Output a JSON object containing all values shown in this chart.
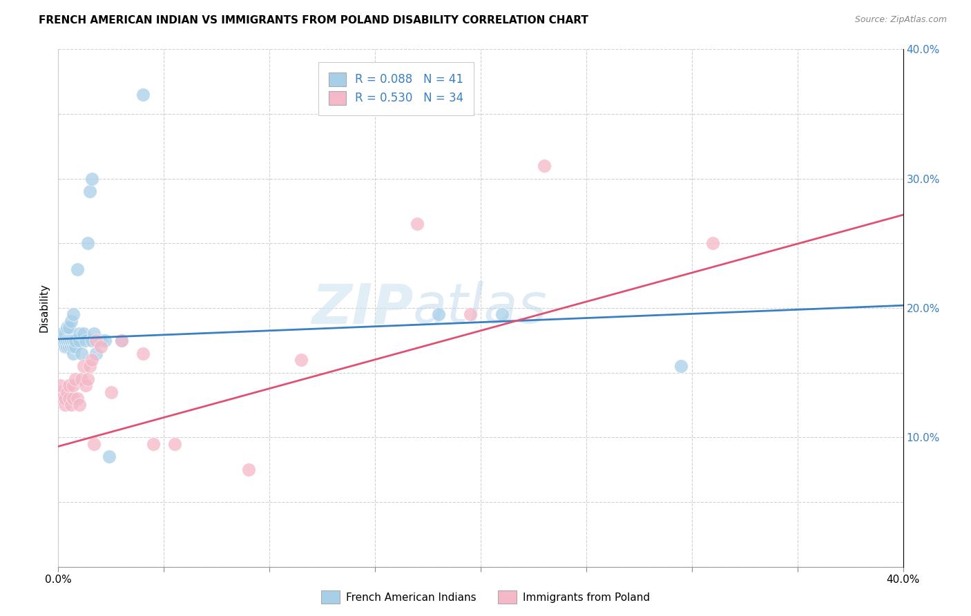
{
  "title": "FRENCH AMERICAN INDIAN VS IMMIGRANTS FROM POLAND DISABILITY CORRELATION CHART",
  "source": "Source: ZipAtlas.com",
  "ylabel": "Disability",
  "xlim": [
    0.0,
    0.4
  ],
  "ylim": [
    0.0,
    0.4
  ],
  "x_ticks": [
    0.0,
    0.05,
    0.1,
    0.15,
    0.2,
    0.25,
    0.3,
    0.35,
    0.4
  ],
  "y_ticks": [
    0.0,
    0.05,
    0.1,
    0.15,
    0.2,
    0.25,
    0.3,
    0.35,
    0.4
  ],
  "blue_color": "#a8cfe8",
  "pink_color": "#f4b8c8",
  "blue_line_color": "#3a7fc1",
  "pink_line_color": "#e05070",
  "legend_R1": "R = 0.088",
  "legend_N1": "N = 41",
  "legend_R2": "R = 0.530",
  "legend_N2": "N = 34",
  "legend_label1": "French American Indians",
  "legend_label2": "Immigrants from Poland",
  "watermark_zip": "ZIP",
  "watermark_atlas": "atlas",
  "blue_x": [
    0.001,
    0.002,
    0.002,
    0.003,
    0.003,
    0.003,
    0.004,
    0.004,
    0.004,
    0.005,
    0.005,
    0.005,
    0.006,
    0.006,
    0.006,
    0.007,
    0.007,
    0.007,
    0.007,
    0.008,
    0.008,
    0.009,
    0.01,
    0.01,
    0.011,
    0.012,
    0.013,
    0.014,
    0.015,
    0.016,
    0.016,
    0.017,
    0.018,
    0.02,
    0.022,
    0.024,
    0.03,
    0.04,
    0.18,
    0.21,
    0.295
  ],
  "blue_y": [
    0.175,
    0.175,
    0.18,
    0.17,
    0.175,
    0.18,
    0.17,
    0.175,
    0.185,
    0.17,
    0.175,
    0.185,
    0.17,
    0.175,
    0.19,
    0.165,
    0.17,
    0.175,
    0.195,
    0.17,
    0.175,
    0.23,
    0.175,
    0.18,
    0.165,
    0.18,
    0.175,
    0.25,
    0.29,
    0.3,
    0.175,
    0.18,
    0.165,
    0.175,
    0.175,
    0.085,
    0.175,
    0.365,
    0.195,
    0.195,
    0.155
  ],
  "pink_x": [
    0.001,
    0.001,
    0.002,
    0.003,
    0.003,
    0.004,
    0.005,
    0.005,
    0.006,
    0.007,
    0.007,
    0.008,
    0.009,
    0.01,
    0.011,
    0.012,
    0.013,
    0.014,
    0.015,
    0.016,
    0.017,
    0.018,
    0.02,
    0.025,
    0.03,
    0.04,
    0.045,
    0.055,
    0.09,
    0.115,
    0.17,
    0.195,
    0.23,
    0.31
  ],
  "pink_y": [
    0.135,
    0.14,
    0.13,
    0.125,
    0.13,
    0.135,
    0.13,
    0.14,
    0.125,
    0.13,
    0.14,
    0.145,
    0.13,
    0.125,
    0.145,
    0.155,
    0.14,
    0.145,
    0.155,
    0.16,
    0.095,
    0.175,
    0.17,
    0.135,
    0.175,
    0.165,
    0.095,
    0.095,
    0.075,
    0.16,
    0.265,
    0.195,
    0.31,
    0.25
  ],
  "blue_trend_x": [
    0.0,
    0.4
  ],
  "blue_trend_y": [
    0.176,
    0.202
  ],
  "pink_trend_x": [
    0.0,
    0.4
  ],
  "pink_trend_y": [
    0.093,
    0.272
  ]
}
